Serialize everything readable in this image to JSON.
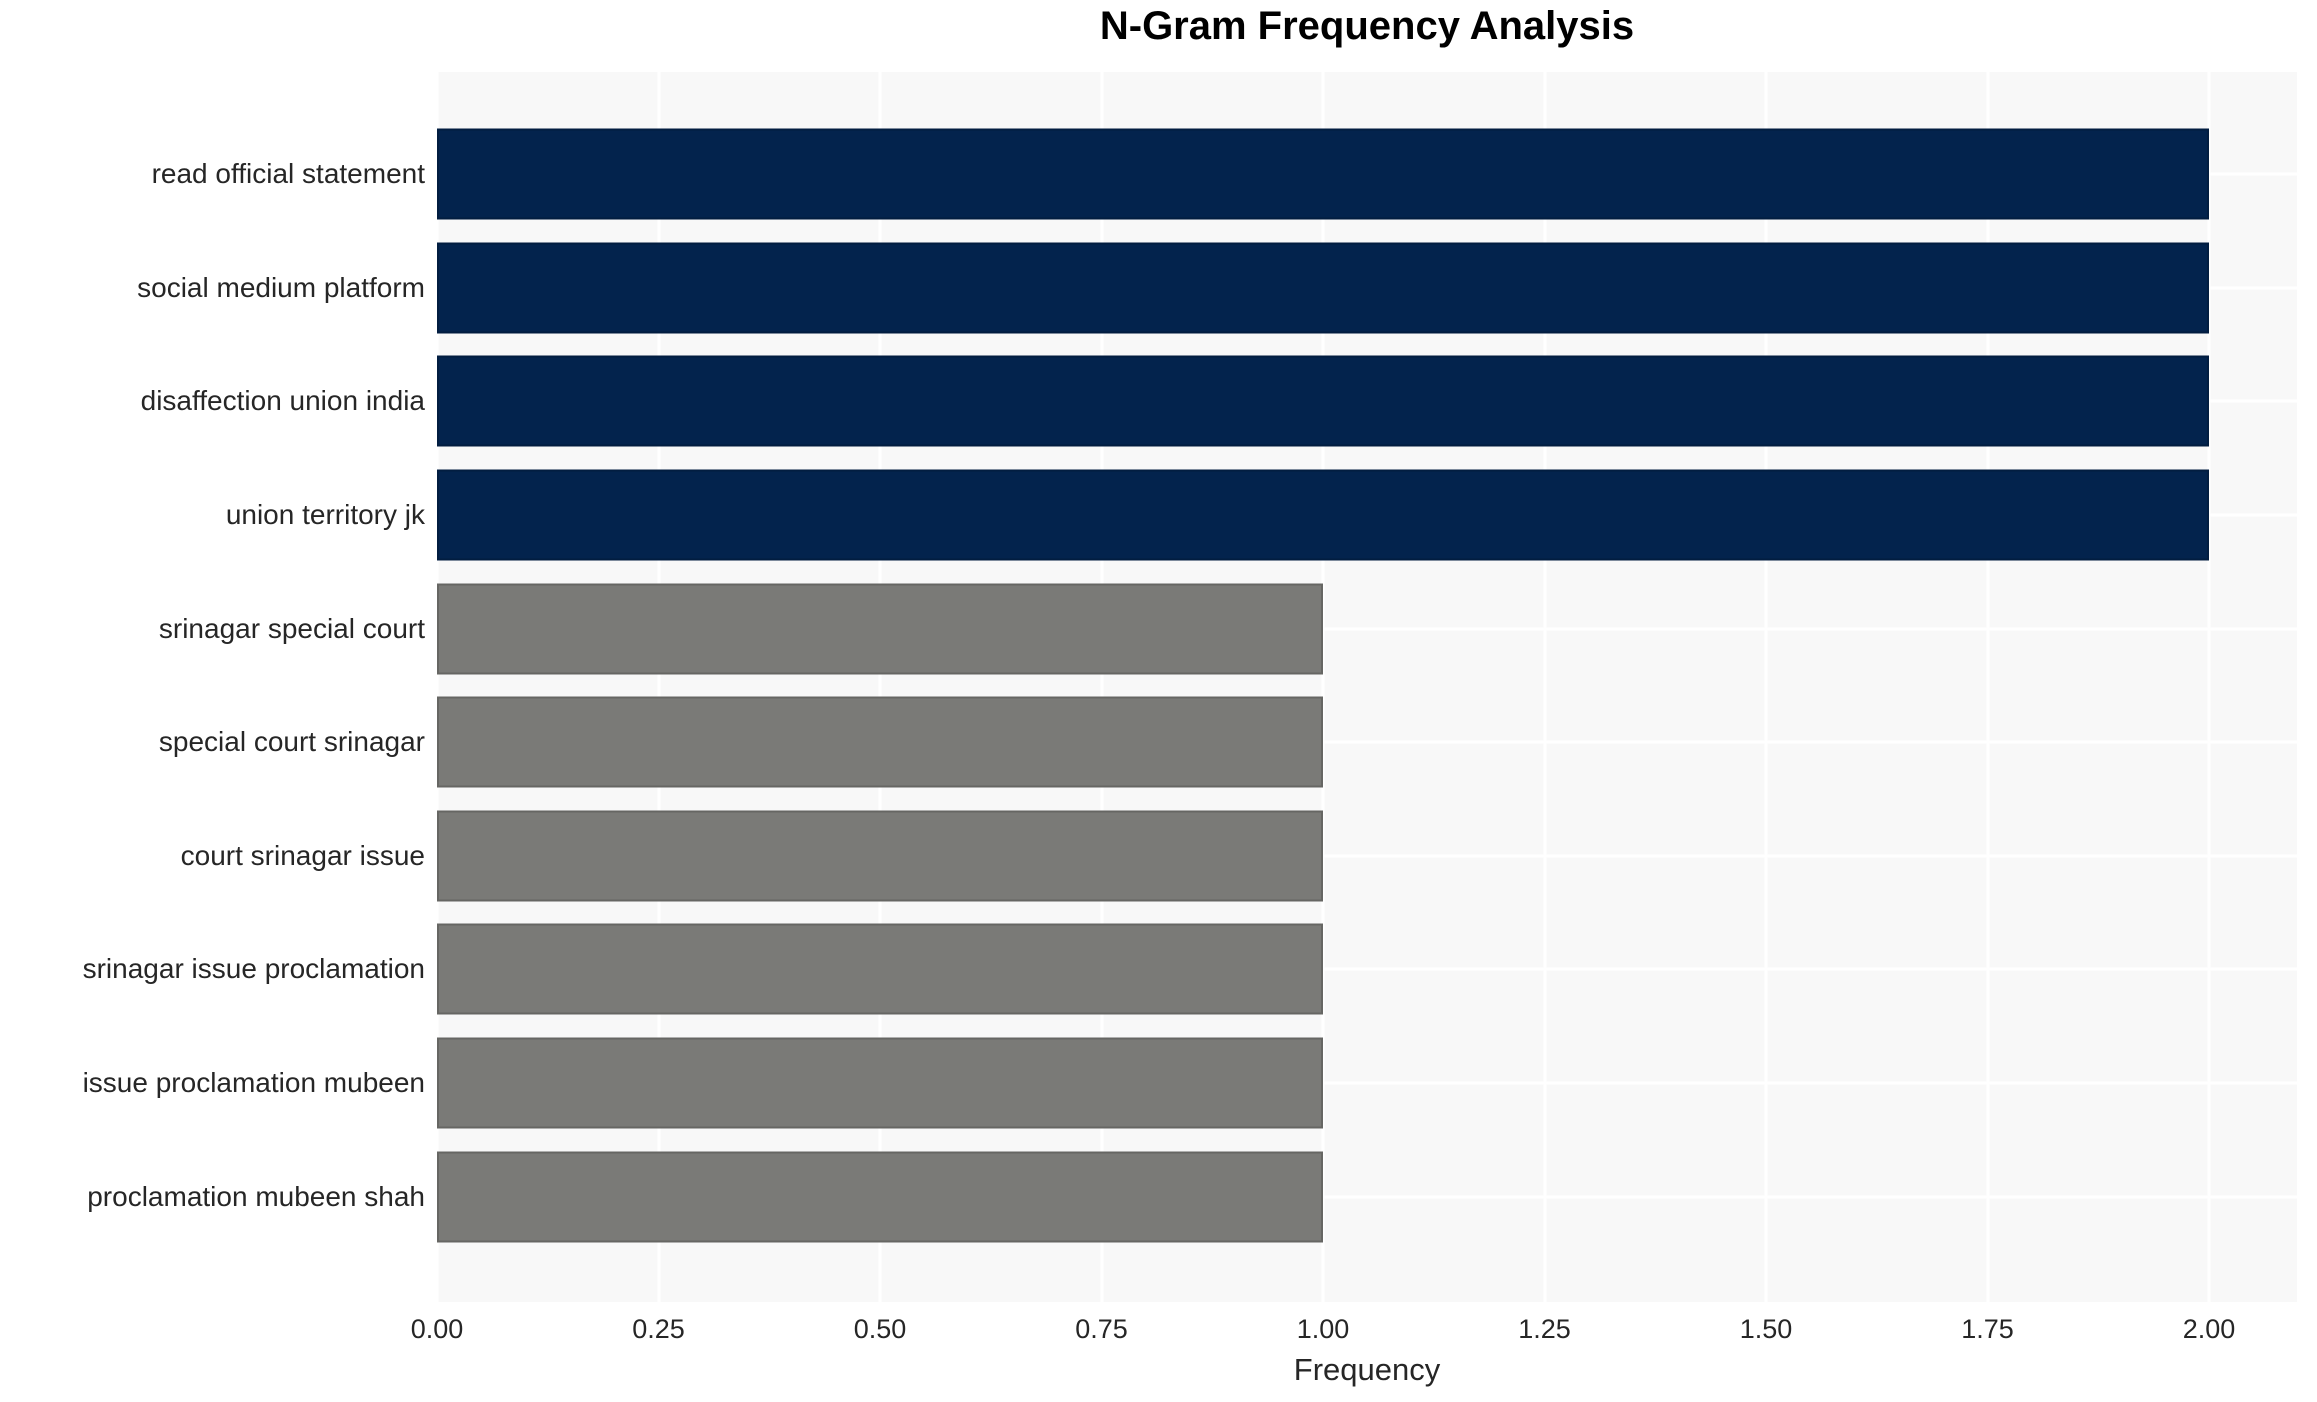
{
  "chart_data": {
    "type": "bar",
    "orientation": "horizontal",
    "title": "N-Gram Frequency Analysis",
    "xlabel": "Frequency",
    "ylabel": "",
    "xlim": [
      0,
      2.1
    ],
    "grid": true,
    "legend": false,
    "plot_background": "#f8f8f8",
    "gridline_color": "#ffffff",
    "text_color": "#262626",
    "title_color": "#000000",
    "categories": [
      "read official statement",
      "social medium platform",
      "disaffection union india",
      "union territory jk",
      "srinagar special court",
      "special court srinagar",
      "court srinagar issue",
      "srinagar issue proclamation",
      "issue proclamation mubeen",
      "proclamation mubeen shah"
    ],
    "values": [
      2,
      2,
      2,
      2,
      1,
      1,
      1,
      1,
      1,
      1
    ],
    "bar_colors": [
      "#03234d",
      "#03234d",
      "#03234d",
      "#03234d",
      "#7a7a77",
      "#7a7a77",
      "#7a7a77",
      "#7a7a77",
      "#7a7a77",
      "#7a7a77"
    ],
    "color_legend": {
      "frequency_2": "#03234d",
      "frequency_1": "#7a7a77"
    },
    "xticks": {
      "values": [
        0,
        0.25,
        0.5,
        0.75,
        1.0,
        1.25,
        1.5,
        1.75,
        2.0
      ],
      "labels": [
        "0.00",
        "0.25",
        "0.50",
        "0.75",
        "1.00",
        "1.25",
        "1.50",
        "1.75",
        "2.00"
      ]
    }
  }
}
